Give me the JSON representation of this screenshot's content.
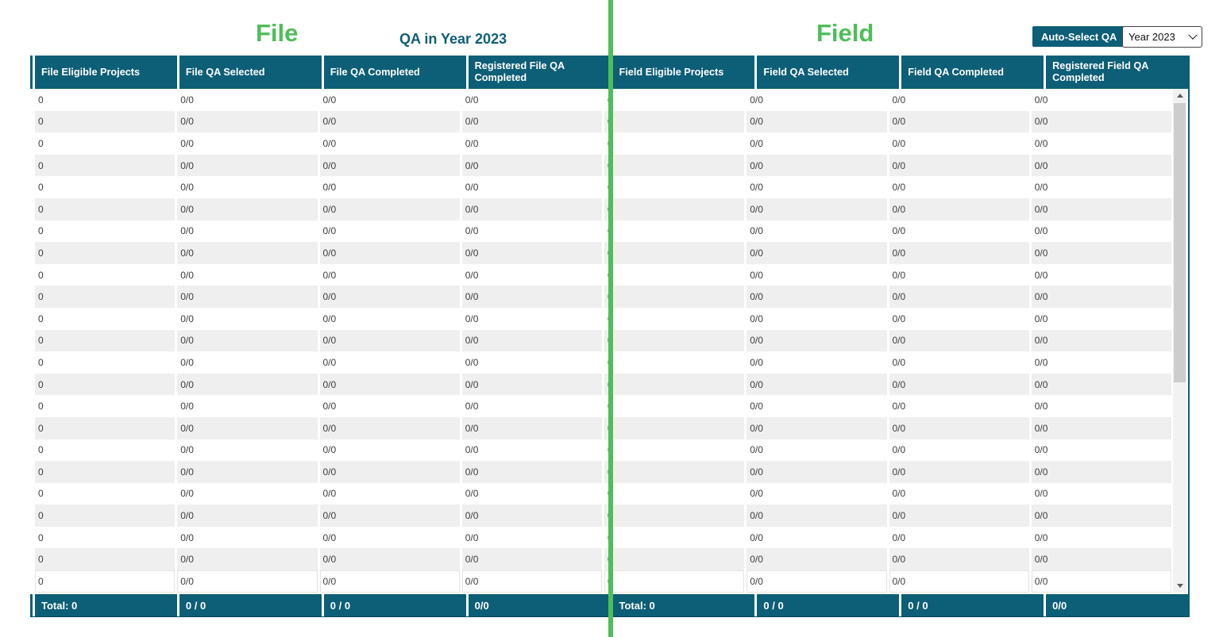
{
  "colors": {
    "teal": "#0D5E77",
    "green": "#4EBE58",
    "stripe": "#EFEFEF"
  },
  "header": {
    "file_label": "File",
    "field_label": "Field",
    "title": "QA in Year 2023",
    "auto_select_button": "Auto-Select QA",
    "year_dropdown": {
      "value": "Year 2023"
    }
  },
  "table": {
    "columns": [
      "File Eligible Projects",
      "File QA Selected",
      "File QA Completed",
      "Registered File QA Completed",
      "Field Eligible Projects",
      "Field QA Selected",
      "Field QA Completed",
      "Registered Field QA Completed"
    ],
    "rows": {
      "count": 23,
      "values": [
        "0",
        "0/0",
        "0/0",
        "0/0",
        "0",
        "0/0",
        "0/0",
        "0/0"
      ]
    },
    "footer": [
      "Total: 0",
      "0 / 0",
      "0 / 0",
      "0/0",
      "Total: 0",
      "0 / 0",
      "0 / 0",
      "0/0"
    ]
  }
}
